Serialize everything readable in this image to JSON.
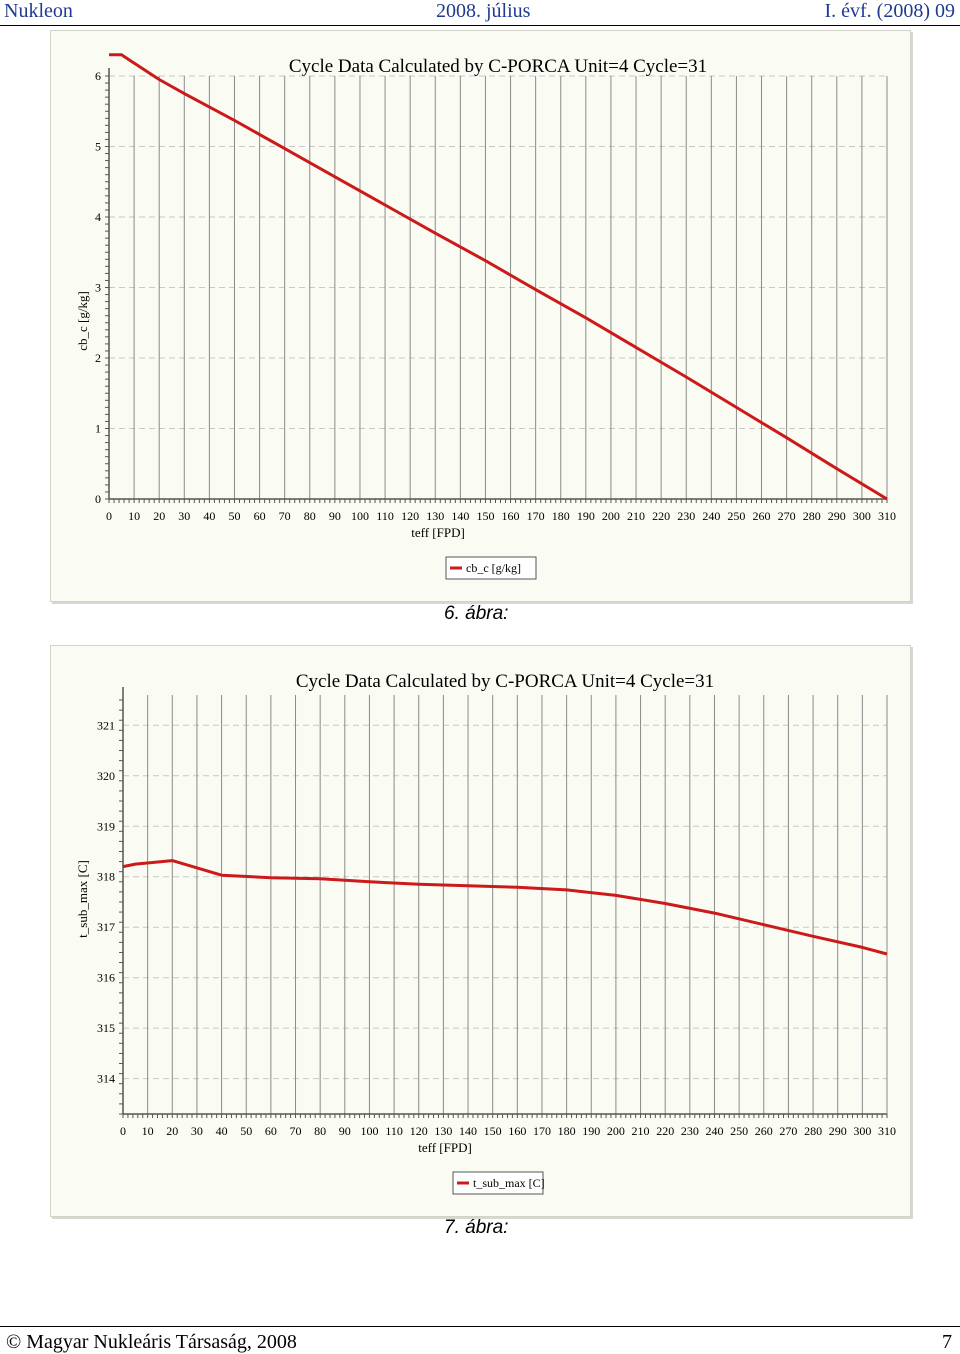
{
  "header": {
    "left": "Nukleon",
    "center": "2008. július",
    "right": "I. évf. (2008) 09"
  },
  "footer": {
    "copyright": "© Magyar Nukleáris Társaság, 2008",
    "page_number": "7"
  },
  "colors": {
    "series": "#cc1a1a",
    "panel_bg": "#fafcf3",
    "header_text": "#1f3a93"
  },
  "figures": [
    {
      "caption": "6. ábra:"
    },
    {
      "caption": "7. ábra:"
    }
  ],
  "chart_data": [
    {
      "type": "line",
      "title": "Cycle Data Calculated by C-PORCA Unit=4 Cycle=31",
      "xlabel": "teff [FPD]",
      "ylabel": "cb_c [g/kg]",
      "xlim": [
        0,
        310
      ],
      "ylim": [
        0,
        6
      ],
      "x_ticks": [
        0,
        10,
        20,
        30,
        40,
        50,
        60,
        70,
        80,
        90,
        100,
        110,
        120,
        130,
        140,
        150,
        160,
        170,
        180,
        190,
        200,
        210,
        220,
        230,
        240,
        250,
        260,
        270,
        280,
        290,
        300,
        310
      ],
      "y_ticks": [
        0,
        1,
        2,
        3,
        4,
        5,
        6
      ],
      "grid": true,
      "legend": "bottom-center",
      "series": [
        {
          "name": "cb_c [g/kg]",
          "x": [
            0,
            5,
            20,
            30,
            50,
            70,
            90,
            110,
            130,
            150,
            170,
            190,
            210,
            230,
            250,
            270,
            290,
            310
          ],
          "y": [
            6.3,
            6.3,
            5.95,
            5.75,
            5.37,
            4.97,
            4.57,
            4.17,
            3.77,
            3.38,
            2.97,
            2.57,
            2.15,
            1.73,
            1.3,
            0.87,
            0.43,
            0.0
          ]
        }
      ]
    },
    {
      "type": "line",
      "title": "Cycle Data Calculated by C-PORCA Unit=4 Cycle=31",
      "xlabel": "teff [FPD]",
      "ylabel": "t_sub_max [C]",
      "xlim": [
        0,
        310
      ],
      "ylim": [
        313.3,
        321.6
      ],
      "x_ticks": [
        0,
        10,
        20,
        30,
        40,
        50,
        60,
        70,
        80,
        90,
        100,
        110,
        120,
        130,
        140,
        150,
        160,
        170,
        180,
        190,
        200,
        210,
        220,
        230,
        240,
        250,
        260,
        270,
        280,
        290,
        300,
        310
      ],
      "y_ticks": [
        314,
        315,
        316,
        317,
        318,
        319,
        320,
        321
      ],
      "grid": true,
      "legend": "bottom-center",
      "series": [
        {
          "name": "t_sub_max [C]",
          "x": [
            0,
            5,
            20,
            40,
            60,
            80,
            100,
            120,
            140,
            160,
            180,
            200,
            220,
            240,
            260,
            280,
            300,
            310
          ],
          "y": [
            318.2,
            318.25,
            318.32,
            318.03,
            317.98,
            317.96,
            317.9,
            317.85,
            317.82,
            317.79,
            317.74,
            317.63,
            317.47,
            317.28,
            317.05,
            316.82,
            316.6,
            316.47
          ]
        }
      ]
    }
  ]
}
